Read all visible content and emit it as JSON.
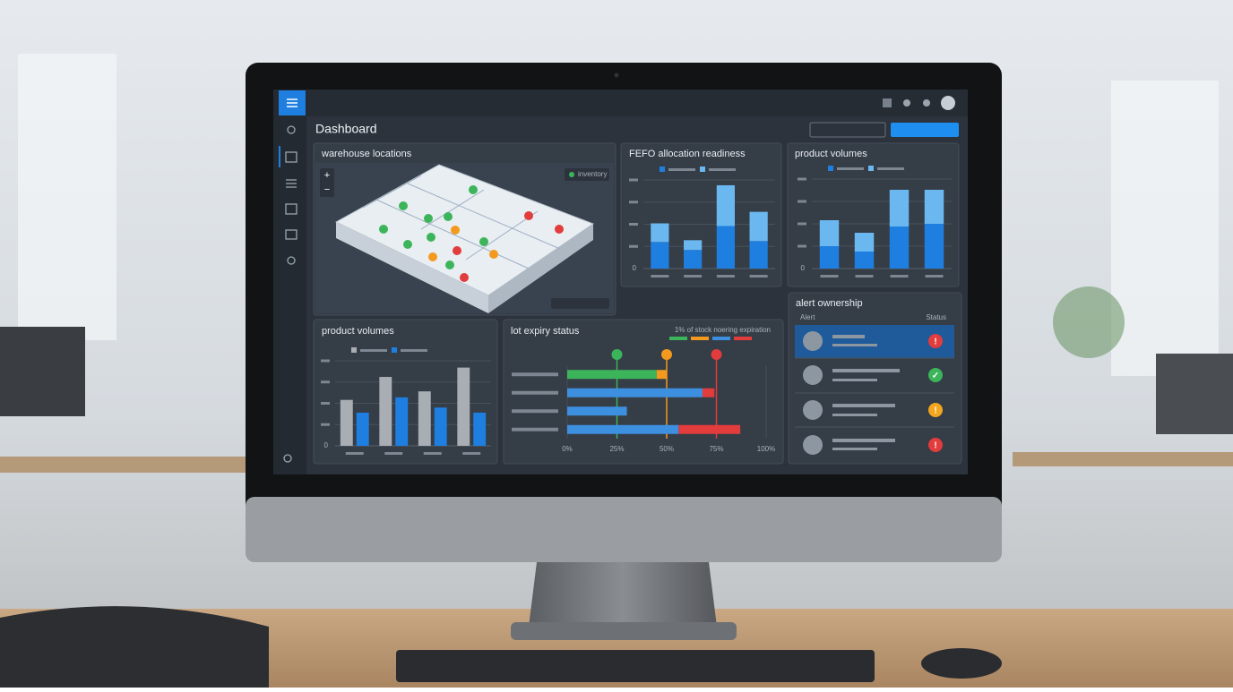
{
  "header": {
    "title": "Dashboard"
  },
  "map": {
    "title": "warehouse locations",
    "legend": "inventory"
  },
  "alerts": {
    "title": "alert ownership",
    "columns": [
      "Alert",
      "Status"
    ]
  },
  "chart_data": [
    {
      "type": "bar",
      "stacked": true,
      "title": "FEFO allocation readiness",
      "categories": [
        null,
        null,
        null,
        null
      ],
      "ylim": [
        0,
        100
      ],
      "yticks": [
        0
      ],
      "series": [
        {
          "color": "#1e7fe0",
          "values": [
            30,
            21,
            48,
            31
          ]
        },
        {
          "color": "#6bb8f0",
          "values": [
            21,
            11,
            46,
            33
          ]
        }
      ]
    },
    {
      "type": "bar",
      "stacked": true,
      "title": "product volumes",
      "categories": [
        null,
        null,
        null,
        null
      ],
      "ylim": [
        0,
        100
      ],
      "yticks": [
        0
      ],
      "series": [
        {
          "color": "#1e7fe0",
          "values": [
            25,
            19,
            47,
            50
          ]
        },
        {
          "color": "#6bb8f0",
          "values": [
            29,
            21,
            41,
            38
          ]
        }
      ]
    },
    {
      "type": "bar",
      "stacked": false,
      "title": "product volumes",
      "categories": [
        null,
        null,
        null,
        null
      ],
      "ylim": [
        0,
        100
      ],
      "yticks": [
        0
      ],
      "series": [
        {
          "color": "#a9aeb5",
          "values": [
            54,
            81,
            64,
            92
          ]
        },
        {
          "color": "#1e7fe0",
          "values": [
            39,
            57,
            45,
            39
          ]
        }
      ]
    },
    {
      "type": "barh",
      "stacked": true,
      "title": "lot expiry status",
      "subtitle": "1% of stock noering expiration",
      "categories": [
        null,
        null,
        null,
        null
      ],
      "xlim": [
        0,
        100
      ],
      "xticks": [
        {
          "value": 0,
          "label": "0%"
        },
        {
          "value": 25,
          "label": "25%"
        },
        {
          "value": 50,
          "label": "50%"
        },
        {
          "value": 75,
          "label": "75%"
        },
        {
          "value": 100,
          "label": "100%"
        }
      ],
      "series": [
        {
          "color": "#3cb55a",
          "values": [
            45,
            null,
            null,
            null
          ]
        },
        {
          "color": "#f39a1e",
          "values": [
            5,
            null,
            null,
            null
          ]
        },
        {
          "color": "#3d8fe0",
          "values": [
            null,
            68,
            30,
            56
          ]
        },
        {
          "color": "#e23c3c",
          "values": [
            null,
            6,
            null,
            31
          ]
        }
      ]
    }
  ]
}
